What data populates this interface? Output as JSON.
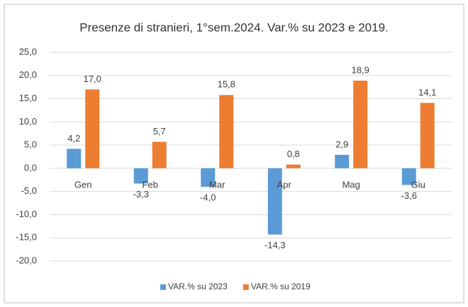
{
  "chart_data": {
    "type": "bar",
    "title": "Presenze di stranieri, 1°sem.2024. Var.% su 2023 e 2019.",
    "categories": [
      "Gen",
      "Feb",
      "Mar",
      "Apr",
      "Mag",
      "Giu"
    ],
    "series": [
      {
        "name": "VAR.% su 2023",
        "color": "#5b9bd5",
        "values": [
          4.2,
          -3.3,
          -4.0,
          -14.3,
          2.9,
          -3.6
        ],
        "value_labels": [
          "4,2",
          "-3,3",
          "-4,0",
          "-14,3",
          "2,9",
          "-3,6"
        ]
      },
      {
        "name": "VAR.% su 2019",
        "color": "#ed7d31",
        "values": [
          17.0,
          5.7,
          15.8,
          0.8,
          18.9,
          14.1
        ],
        "value_labels": [
          "17,0",
          "5,7",
          "15,8",
          "0,8",
          "18,9",
          "14,1"
        ]
      }
    ],
    "ylim": [
      -20,
      25
    ],
    "yticks": [
      {
        "value": -20,
        "label": "-20,0"
      },
      {
        "value": -15,
        "label": "-15,0"
      },
      {
        "value": -10,
        "label": "-10,0"
      },
      {
        "value": -5,
        "label": "-5,0"
      },
      {
        "value": 0,
        "label": "0,0"
      },
      {
        "value": 5,
        "label": "5,0"
      },
      {
        "value": 10,
        "label": "10,0"
      },
      {
        "value": 15,
        "label": "15,0"
      },
      {
        "value": 20,
        "label": "20,0"
      },
      {
        "value": 25,
        "label": "25,0"
      }
    ],
    "grid": true,
    "legend": "bottom"
  }
}
